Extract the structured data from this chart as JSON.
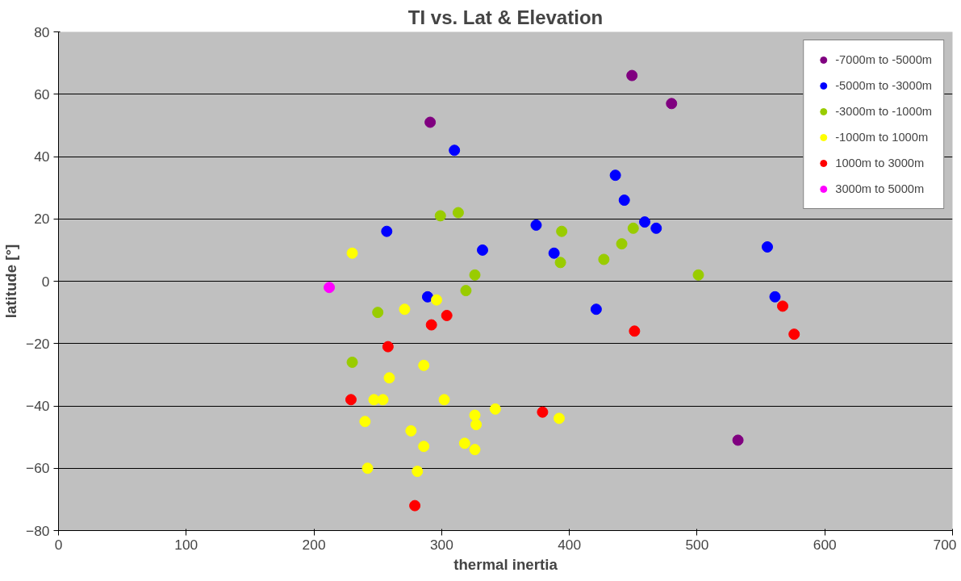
{
  "chart_data": {
    "type": "scatter",
    "title": "TI vs. Lat & Elevation",
    "xlabel": "thermal inertia",
    "ylabel": "latitude [°]",
    "xlim": [
      0,
      700
    ],
    "xticks": [
      0,
      100,
      200,
      300,
      400,
      500,
      600,
      700
    ],
    "ylim": [
      -80,
      80
    ],
    "yticks": [
      -80,
      -60,
      -40,
      -20,
      0,
      20,
      40,
      60,
      80
    ],
    "grid": "y",
    "legend": "top right",
    "marker": "circle",
    "series": [
      {
        "name": "-7000m to -5000m",
        "color": "#800080",
        "x": [
          291,
          449,
          480,
          532
        ],
        "values": [
          51,
          66,
          57,
          -51
        ]
      },
      {
        "name": "-5000m to -3000m",
        "color": "#0000ff",
        "x": [
          310,
          257,
          289,
          332,
          374,
          388,
          421,
          436,
          443,
          459,
          468,
          555,
          561
        ],
        "values": [
          42,
          16,
          -5,
          10,
          18,
          9,
          -9,
          34,
          26,
          19,
          17,
          11,
          -5
        ]
      },
      {
        "name": "-3000m to -1000m",
        "color": "#99cc00",
        "x": [
          299,
          313,
          394,
          393,
          427,
          441,
          450,
          501,
          326,
          319,
          250,
          230
        ],
        "values": [
          21,
          22,
          16,
          6,
          7,
          12,
          17,
          2,
          2,
          -3,
          -10,
          -26
        ]
      },
      {
        "name": "-1000m to 1000m",
        "color": "#ffff00",
        "x": [
          230,
          296,
          271,
          259,
          286,
          247,
          254,
          302,
          240,
          276,
          286,
          326,
          327,
          342,
          318,
          326,
          392,
          242,
          281
        ],
        "values": [
          9,
          -6,
          -9,
          -31,
          -27,
          -38,
          -38,
          -38,
          -45,
          -48,
          -53,
          -43,
          -46,
          -41,
          -52,
          -54,
          -44,
          -60,
          -61
        ]
      },
      {
        "name": "1000m to 3000m",
        "color": "#ff0000",
        "x": [
          292,
          304,
          258,
          229,
          379,
          279,
          451,
          567,
          576
        ],
        "values": [
          -14,
          -11,
          -21,
          -38,
          -42,
          -72,
          -16,
          -8,
          -17
        ]
      },
      {
        "name": "3000m to 5000m",
        "color": "#ff00ff",
        "x": [
          212
        ],
        "values": [
          -2
        ]
      }
    ]
  }
}
